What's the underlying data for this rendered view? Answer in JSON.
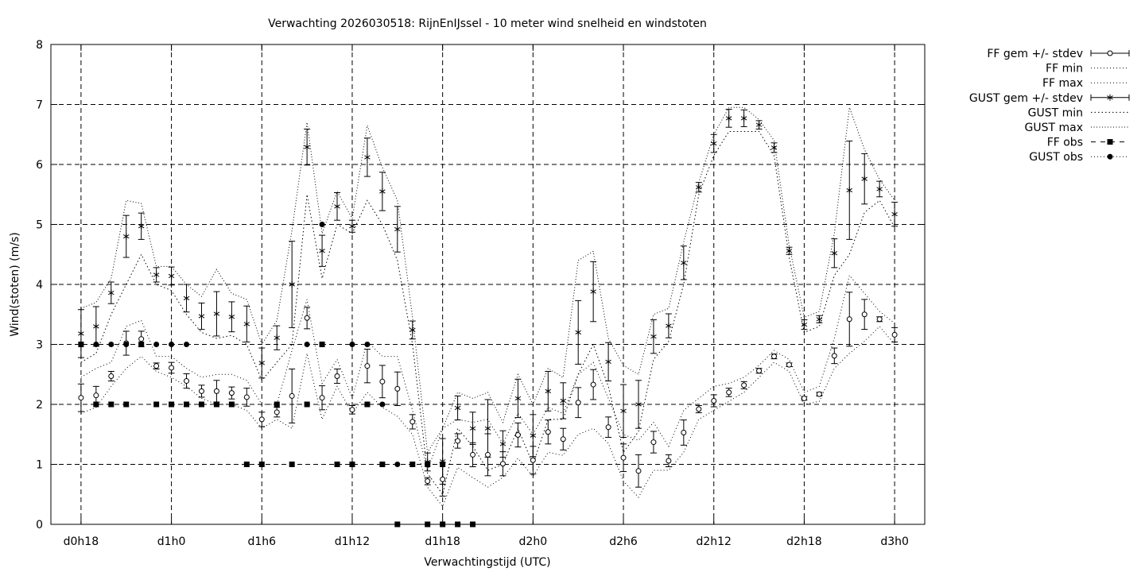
{
  "chart_data": {
    "type": "line",
    "title": "Verwachting 2026030518: RijnEnIJssel - 10 meter wind snelheid en windstoten",
    "xlabel": "Verwachtingstijd (UTC)",
    "ylabel": "Wind(stoten) (m/s)",
    "xlim": [
      -1,
      57
    ],
    "ylim": [
      0,
      8
    ],
    "grid": true,
    "legend_position": "outside-right",
    "x_ticks": [
      {
        "x": 1,
        "label": "d0h18"
      },
      {
        "x": 7,
        "label": "d1h0"
      },
      {
        "x": 13,
        "label": "d1h6"
      },
      {
        "x": 19,
        "label": "d1h12"
      },
      {
        "x": 25,
        "label": "d1h18"
      },
      {
        "x": 31,
        "label": "d2h0"
      },
      {
        "x": 37,
        "label": "d2h6"
      },
      {
        "x": 43,
        "label": "d2h12"
      },
      {
        "x": 49,
        "label": "d2h18"
      },
      {
        "x": 55,
        "label": "d3h0"
      }
    ],
    "y_ticks": [
      0,
      1,
      2,
      3,
      4,
      5,
      6,
      7,
      8
    ],
    "legend": [
      "FF gem +/- stdev",
      "FF min",
      "FF max",
      "GUST gem +/- stdev",
      "GUST min",
      "GUST max",
      "FF obs",
      "GUST obs"
    ],
    "ff_mean": [
      2.11,
      2.15,
      2.47,
      3.02,
      3.09,
      2.64,
      2.61,
      2.39,
      2.22,
      2.22,
      2.19,
      2.12,
      1.75,
      1.87,
      2.14,
      3.44,
      2.11,
      2.47,
      1.91,
      2.64,
      2.38,
      2.26,
      1.71,
      0.72,
      0.75,
      1.39,
      1.16,
      1.16,
      1.01,
      1.49,
      1.07,
      1.54,
      1.42,
      2.03,
      2.33,
      1.62,
      1.11,
      0.89,
      1.37,
      1.06,
      1.53,
      1.92,
      2.06,
      2.2,
      2.32,
      2.56,
      2.8,
      2.66,
      2.1,
      2.17,
      2.81,
      3.42,
      3.5,
      3.42,
      3.16
    ],
    "ff_sd": [
      0.23,
      0.15,
      0.08,
      0.2,
      0.13,
      0.05,
      0.09,
      0.12,
      0.1,
      0.18,
      0.1,
      0.15,
      0.12,
      0.08,
      0.45,
      0.18,
      0.2,
      0.12,
      0.07,
      0.28,
      0.27,
      0.28,
      0.12,
      0.06,
      0.28,
      0.12,
      0.2,
      0.35,
      0.2,
      0.2,
      0.23,
      0.2,
      0.18,
      0.25,
      0.25,
      0.17,
      0.23,
      0.27,
      0.18,
      0.1,
      0.21,
      0.06,
      0.1,
      0.07,
      0.06,
      0.04,
      0.04,
      0.03,
      0.03,
      0.03,
      0.13,
      0.45,
      0.25,
      0.04,
      0.12
    ],
    "ff_min": [
      1.85,
      1.95,
      2.3,
      2.6,
      2.8,
      2.55,
      2.45,
      2.3,
      2.1,
      2.0,
      2.0,
      1.9,
      1.6,
      1.75,
      1.6,
      2.85,
      1.75,
      2.3,
      1.85,
      2.2,
      1.95,
      1.8,
      1.5,
      0.62,
      0.3,
      0.95,
      0.78,
      0.62,
      0.78,
      1.1,
      0.8,
      1.2,
      1.15,
      1.5,
      1.6,
      1.35,
      0.72,
      0.45,
      0.9,
      0.9,
      1.2,
      1.75,
      1.9,
      2.05,
      2.2,
      2.45,
      2.7,
      2.55,
      2.0,
      2.05,
      2.6,
      2.85,
      3.05,
      3.3,
      3.0
    ],
    "ff_max": [
      2.45,
      2.6,
      2.7,
      3.3,
      3.4,
      2.8,
      2.8,
      2.6,
      2.45,
      2.5,
      2.5,
      2.4,
      2.0,
      2.0,
      2.9,
      3.75,
      2.35,
      2.75,
      2.1,
      3.05,
      2.8,
      2.8,
      1.9,
      0.9,
      1.6,
      1.75,
      1.7,
      1.75,
      1.35,
      1.85,
      1.5,
      1.95,
      1.85,
      2.5,
      2.7,
      2.1,
      1.5,
      1.4,
      1.7,
      1.3,
      1.9,
      2.1,
      2.3,
      2.35,
      2.45,
      2.65,
      2.9,
      2.75,
      2.2,
      2.3,
      3.1,
      4.15,
      3.85,
      3.55,
      3.35
    ],
    "gust_mean": [
      3.18,
      3.3,
      3.86,
      4.8,
      4.97,
      4.16,
      4.14,
      3.77,
      3.47,
      3.51,
      3.46,
      3.34,
      2.69,
      3.11,
      4.0,
      6.29,
      4.56,
      5.3,
      4.97,
      6.12,
      5.55,
      4.92,
      3.24,
      1.04,
      1.05,
      1.94,
      1.6,
      1.6,
      1.34,
      2.1,
      1.48,
      2.22,
      2.06,
      3.2,
      3.88,
      2.71,
      1.89,
      2.0,
      3.13,
      3.31,
      4.36,
      5.62,
      6.35,
      6.77,
      6.77,
      6.66,
      6.28,
      4.56,
      3.33,
      3.42,
      4.52,
      5.57,
      5.76,
      5.59,
      5.17
    ],
    "gust_sd": [
      0.4,
      0.33,
      0.18,
      0.35,
      0.22,
      0.12,
      0.15,
      0.23,
      0.22,
      0.37,
      0.25,
      0.3,
      0.25,
      0.2,
      0.72,
      0.3,
      0.26,
      0.23,
      0.1,
      0.32,
      0.32,
      0.38,
      0.15,
      0.15,
      0.38,
      0.2,
      0.27,
      0.48,
      0.22,
      0.32,
      0.35,
      0.33,
      0.3,
      0.53,
      0.5,
      0.32,
      0.44,
      0.4,
      0.28,
      0.2,
      0.28,
      0.08,
      0.15,
      0.15,
      0.14,
      0.07,
      0.08,
      0.06,
      0.08,
      0.06,
      0.24,
      0.82,
      0.42,
      0.13,
      0.2
    ],
    "gust_min": [
      2.7,
      2.85,
      3.5,
      4.0,
      4.5,
      4.0,
      3.9,
      3.5,
      3.2,
      3.1,
      3.15,
      3.0,
      2.4,
      2.7,
      3.0,
      5.5,
      4.1,
      5.0,
      4.85,
      5.4,
      5.0,
      4.4,
      3.0,
      0.85,
      0.5,
      1.6,
      1.3,
      0.9,
      1.0,
      1.6,
      1.0,
      1.75,
      1.75,
      2.5,
      3.0,
      2.3,
      1.2,
      1.55,
      2.75,
      3.05,
      4.0,
      5.5,
      6.15,
      6.55,
      6.55,
      6.55,
      6.15,
      4.45,
      3.2,
      3.3,
      4.15,
      4.5,
      5.2,
      5.4,
      4.95
    ],
    "gust_max": [
      3.6,
      3.7,
      4.1,
      5.4,
      5.35,
      4.3,
      4.3,
      4.0,
      3.8,
      4.25,
      3.85,
      3.75,
      3.0,
      3.4,
      4.9,
      6.7,
      4.85,
      5.55,
      5.1,
      6.65,
      5.95,
      5.4,
      3.45,
      1.2,
      1.6,
      2.2,
      2.1,
      2.2,
      1.7,
      2.5,
      2.0,
      2.6,
      2.45,
      4.4,
      4.55,
      3.1,
      2.65,
      2.5,
      3.5,
      3.6,
      4.7,
      5.7,
      6.5,
      6.95,
      6.95,
      6.75,
      6.4,
      4.65,
      3.45,
      3.55,
      4.85,
      6.95,
      6.25,
      5.75,
      5.4
    ],
    "ff_obs": [
      [
        1,
        3
      ],
      [
        2,
        2
      ],
      [
        3,
        2
      ],
      [
        4,
        2
      ],
      [
        5,
        3
      ],
      [
        6,
        2
      ],
      [
        7,
        2
      ],
      [
        8,
        2
      ],
      [
        9,
        2
      ],
      [
        10,
        2
      ],
      [
        11,
        2
      ],
      [
        12,
        1
      ],
      [
        13,
        1
      ],
      [
        14,
        2
      ],
      [
        15,
        1
      ],
      [
        16,
        2
      ],
      [
        17,
        3
      ],
      [
        18,
        1
      ],
      [
        19,
        1
      ],
      [
        20,
        2
      ],
      [
        21,
        1
      ],
      [
        22,
        0
      ],
      [
        23,
        1
      ],
      [
        24,
        0
      ],
      [
        24,
        1
      ],
      [
        25,
        0
      ],
      [
        25,
        1
      ],
      [
        26,
        0
      ],
      [
        27,
        0
      ]
    ],
    "gust_obs": [
      [
        1,
        3
      ],
      [
        2,
        3
      ],
      [
        3,
        3
      ],
      [
        4,
        3
      ],
      [
        5,
        3
      ],
      [
        6,
        3
      ],
      [
        7,
        3
      ],
      [
        8,
        3
      ],
      [
        10,
        2
      ],
      [
        11,
        2
      ],
      [
        14,
        2
      ],
      [
        16,
        3
      ],
      [
        17,
        5
      ],
      [
        19,
        3
      ],
      [
        20,
        3
      ],
      [
        21,
        2
      ],
      [
        22,
        1
      ],
      [
        24,
        1
      ]
    ]
  }
}
